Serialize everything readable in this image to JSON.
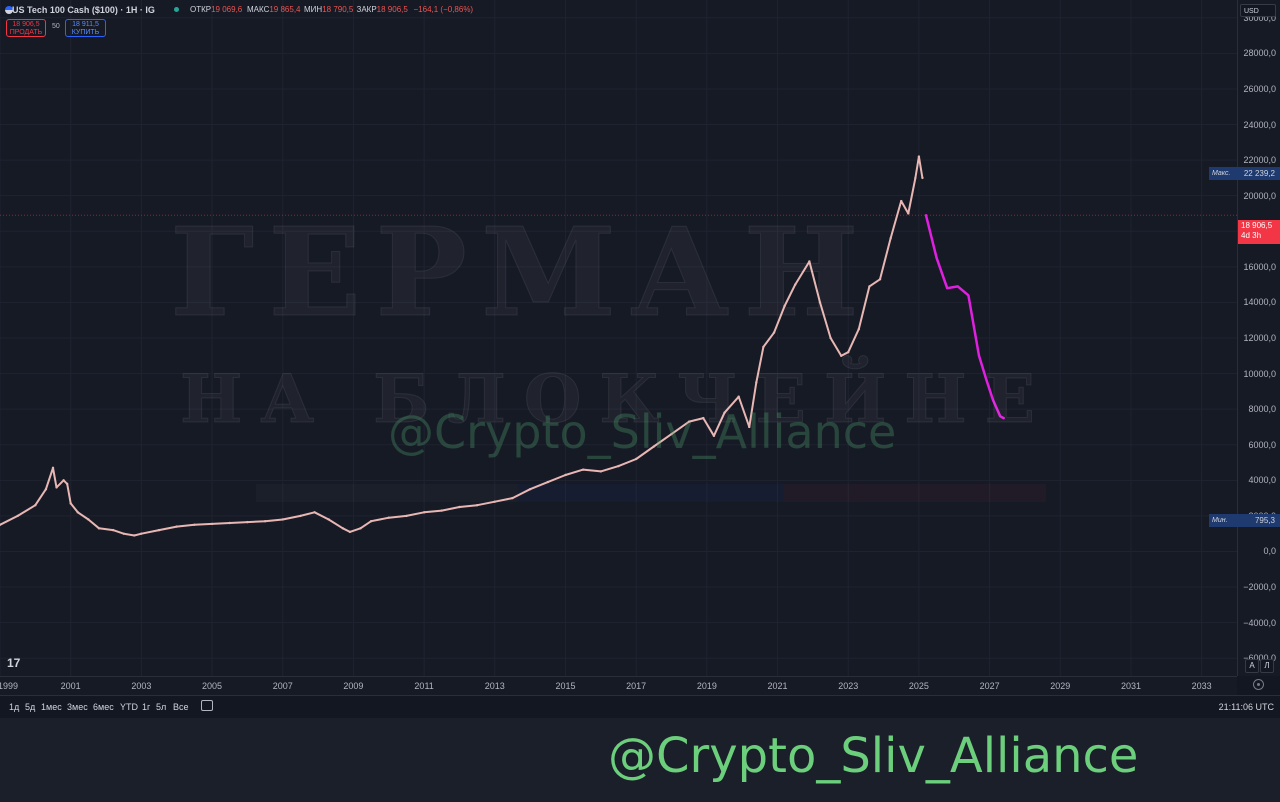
{
  "header": {
    "symbol": "US Tech 100 Cash ($100) · 1H · IG",
    "ohlc": [
      {
        "k": "ОТКР",
        "v": "19 069,6"
      },
      {
        "k": "МАКС",
        "v": "19 865,4"
      },
      {
        "k": "МИН",
        "v": "18 790,5"
      },
      {
        "k": "ЗАКР",
        "v": "18 906,5"
      },
      {
        "k": "",
        "v": "−164,1 (−0,86%)"
      }
    ],
    "sell_price": "18 906,5",
    "sell_label": "ПРОДАТЬ",
    "spread": "50",
    "buy_price": "18 911,5",
    "buy_label": "КУПИТЬ",
    "currency": "USD"
  },
  "badges": {
    "max_label": "Макс.",
    "max_value": "22 239,2",
    "min_label": "Мин.",
    "min_value": "795,3",
    "price_value": "18 906,5",
    "price_countdown": "4d 3h"
  },
  "scale_buttons": {
    "auto": "A",
    "log": "Л"
  },
  "logo": "17",
  "watermark": {
    "line1": "ГЕРМАН",
    "line2": "НА БЛОКЧЕЙНЕ",
    "handle": "@Crypto_Sliv_Alliance",
    "footer": "@Crypto_Sliv_Alliance"
  },
  "toolbar": {
    "ranges": [
      "1д",
      "5д",
      "1мес",
      "3мес",
      "6мес",
      "YTD",
      "1г",
      "5л",
      "Все"
    ],
    "clock": "21:11:06 UTC"
  },
  "colors": {
    "candle": "#e8b7b4",
    "projection": "#e020e0",
    "price_line": "#f23645"
  },
  "chart_data": {
    "type": "line",
    "series": [
      {
        "x": [
          1999.0,
          1999.5,
          2000.0,
          2000.3,
          2000.5,
          2000.6,
          2000.8,
          2000.9,
          2001.0,
          2001.2,
          2001.5,
          2001.8,
          2002.2,
          2002.5,
          2002.8,
          2003.0,
          2003.5,
          2004.0,
          2004.5,
          2005.0,
          2005.5,
          2006.0,
          2006.5,
          2007.0,
          2007.5,
          2007.9,
          2008.3,
          2008.7,
          2008.9,
          2009.2,
          2009.5,
          2010.0,
          2010.5,
          2011.0,
          2011.5,
          2012.0,
          2012.5,
          2013.0,
          2013.5,
          2014.0,
          2014.5,
          2015.0,
          2015.5,
          2016.0,
          2016.5,
          2017.0,
          2017.5,
          2018.0,
          2018.5,
          2018.9,
          2019.2,
          2019.5,
          2019.9,
          2020.2,
          2020.4,
          2020.6,
          2020.9,
          2021.2,
          2021.5,
          2021.9,
          2022.2,
          2022.5,
          2022.8,
          2023.0,
          2023.3,
          2023.6,
          2023.9,
          2024.2,
          2024.5,
          2024.7,
          2024.9,
          2025.0,
          2025.1
        ],
        "values": [
          1500,
          2000,
          2600,
          3500,
          4700,
          3600,
          4000,
          3800,
          2700,
          2200,
          1800,
          1300,
          1200,
          1000,
          900,
          1000,
          1200,
          1400,
          1500,
          1550,
          1600,
          1650,
          1700,
          1800,
          2000,
          2200,
          1800,
          1300,
          1100,
          1300,
          1700,
          1900,
          2000,
          2200,
          2300,
          2500,
          2600,
          2800,
          3000,
          3500,
          3900,
          4300,
          4600,
          4500,
          4800,
          5200,
          5900,
          6600,
          7300,
          7500,
          6500,
          7800,
          8700,
          7000,
          9500,
          11500,
          12300,
          13800,
          15000,
          16300,
          14000,
          12000,
          11000,
          11200,
          12500,
          14900,
          15300,
          17600,
          19700,
          19000,
          21000,
          22200,
          21000
        ]
      },
      {
        "name": "",
        "x": [
          2025.2,
          2025.5,
          2025.8,
          2026.1,
          2026.4,
          2026.7,
          2026.9,
          2027.1,
          2027.3,
          2027.4
        ],
        "values": [
          18900,
          16500,
          14800,
          14900,
          14400,
          11000,
          9700,
          8500,
          7600,
          7500
        ]
      }
    ],
    "price_line": 18906.5,
    "max": 22239.2,
    "min": 795.3,
    "xlim": [
      1999,
      2034
    ],
    "ylim": [
      -7000,
      31000
    ],
    "y_ticks": [
      30000,
      28000,
      26000,
      24000,
      22000,
      20000,
      18000,
      16000,
      14000,
      12000,
      10000,
      8000,
      6000,
      4000,
      2000,
      0,
      -2000,
      -4000,
      -6000
    ],
    "y_tick_labels": [
      "30000,0",
      "28000,0",
      "26000,0",
      "24000,0",
      "22000,0",
      "20000,0",
      "18000,0",
      "16000,0",
      "14000,0",
      "12000,0",
      "10000,0",
      "8000,0",
      "6000,0",
      "4000,0",
      "2000,0",
      "0,0",
      "−2000,0",
      "−4000,0",
      "−6000,0"
    ],
    "x_ticks": [
      1999,
      2001,
      2003,
      2005,
      2007,
      2009,
      2011,
      2013,
      2015,
      2017,
      2019,
      2021,
      2023,
      2025,
      2027,
      2029,
      2031,
      2033
    ],
    "x_tick_labels": [
      "1999",
      "2001",
      "2003",
      "2005",
      "2007",
      "2009",
      "2011",
      "2013",
      "2015",
      "2017",
      "2019",
      "2021",
      "2023",
      "2025",
      "2027",
      "2029",
      "2031",
      "2033"
    ]
  }
}
